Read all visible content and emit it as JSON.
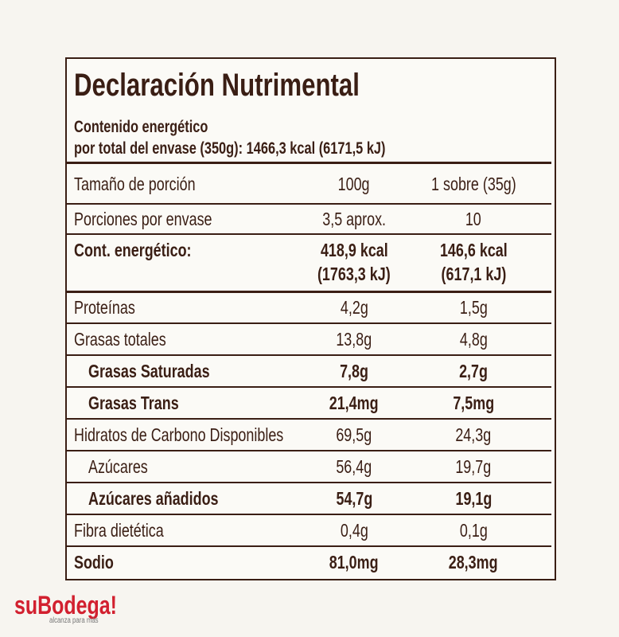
{
  "header": {
    "title": "Declaración Nutrimental",
    "energy_line1": "Contenido energético",
    "energy_line2": "por total del envase (350g):  1466,3 kcal (6171,5 kJ)"
  },
  "table": {
    "rows": [
      {
        "label": "Tamaño de porción",
        "per_100g": [
          "100g"
        ],
        "per_sobre": [
          "1 sobre (35g)"
        ],
        "bold": false,
        "indent": false
      },
      {
        "label": "Porciones por envase",
        "per_100g": [
          "3,5 aprox."
        ],
        "per_sobre": [
          "10"
        ],
        "bold": false,
        "indent": false
      },
      {
        "label": "Cont. energético:",
        "per_100g": [
          "418,9 kcal",
          "(1763,3 kJ)"
        ],
        "per_sobre": [
          "146,6 kcal",
          "(617,1 kJ)"
        ],
        "bold": true,
        "indent": false
      },
      {
        "label": "Proteínas",
        "per_100g": [
          "4,2g"
        ],
        "per_sobre": [
          "1,5g"
        ],
        "bold": false,
        "indent": false
      },
      {
        "label": "Grasas totales",
        "per_100g": [
          "13,8g"
        ],
        "per_sobre": [
          "4,8g"
        ],
        "bold": false,
        "indent": false
      },
      {
        "label": "Grasas Saturadas",
        "per_100g": [
          "7,8g"
        ],
        "per_sobre": [
          "2,7g"
        ],
        "bold": true,
        "indent": true
      },
      {
        "label": "Grasas Trans",
        "per_100g": [
          "21,4mg"
        ],
        "per_sobre": [
          "7,5mg"
        ],
        "bold": true,
        "indent": true
      },
      {
        "label": "Hidratos de Carbono Disponibles",
        "per_100g": [
          "69,5g"
        ],
        "per_sobre": [
          "24,3g"
        ],
        "bold": false,
        "indent": false
      },
      {
        "label": "Azúcares",
        "per_100g": [
          "56,4g"
        ],
        "per_sobre": [
          "19,7g"
        ],
        "bold": false,
        "indent": true
      },
      {
        "label": "Azúcares añadidos",
        "per_100g": [
          "54,7g"
        ],
        "per_sobre": [
          "19,1g"
        ],
        "bold": true,
        "indent": true
      },
      {
        "label": "Fibra dietética",
        "per_100g": [
          "0,4g"
        ],
        "per_sobre": [
          "0,1g"
        ],
        "bold": false,
        "indent": false
      },
      {
        "label": "Sodio",
        "per_100g": [
          "81,0mg"
        ],
        "per_sobre": [
          "28,3mg"
        ],
        "bold": true,
        "indent": false
      }
    ]
  },
  "footer": {
    "brand": "suBodega!",
    "tagline": "alcanza para más"
  }
}
